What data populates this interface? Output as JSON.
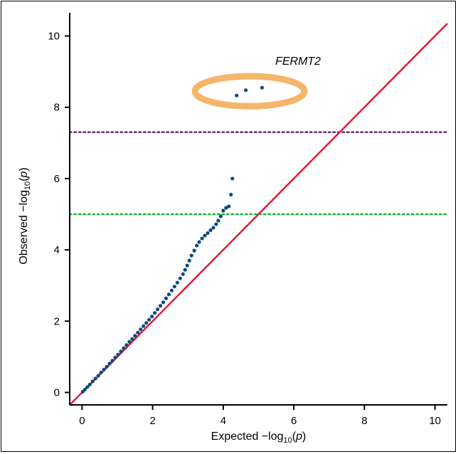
{
  "chart_data": {
    "type": "scatter",
    "title": "",
    "xlabel": "Expected −log10(p)",
    "ylabel": "Observed −log10(p)",
    "xlabel_parts": {
      "pre": "Expected −log",
      "sub": "10",
      "post": "(",
      "italic": "p",
      "close": ")"
    },
    "ylabel_parts": {
      "pre": "Observed −log",
      "sub": "10",
      "post": "(",
      "italic": "p",
      "close": ")"
    },
    "xlim": [
      -0.35,
      10.35
    ],
    "ylim": [
      -0.35,
      10.65
    ],
    "xticks": [
      0,
      2,
      4,
      6,
      8,
      10
    ],
    "yticks": [
      0,
      2,
      4,
      6,
      8,
      10
    ],
    "xtick_labels": [
      "0",
      "2",
      "4",
      "6",
      "8",
      "10"
    ],
    "ytick_labels": [
      "0",
      "2",
      "4",
      "6",
      "8",
      "10"
    ],
    "grid": false,
    "diagonal": {
      "from": [
        -0.35,
        -0.35
      ],
      "to": [
        10.35,
        10.35
      ],
      "color": "#e0183c"
    },
    "thresholds": [
      {
        "y": 7.3,
        "color": "#6b2c6e",
        "style": "dotted"
      },
      {
        "y": 5.0,
        "color": "#1fb53a",
        "style": "dotted"
      }
    ],
    "points": [
      [
        0.02,
        0.02
      ],
      [
        0.08,
        0.08
      ],
      [
        0.15,
        0.15
      ],
      [
        0.22,
        0.22
      ],
      [
        0.3,
        0.31
      ],
      [
        0.38,
        0.39
      ],
      [
        0.46,
        0.47
      ],
      [
        0.54,
        0.56
      ],
      [
        0.62,
        0.64
      ],
      [
        0.7,
        0.72
      ],
      [
        0.78,
        0.81
      ],
      [
        0.86,
        0.89
      ],
      [
        0.94,
        0.98
      ],
      [
        1.02,
        1.06
      ],
      [
        1.1,
        1.15
      ],
      [
        1.18,
        1.24
      ],
      [
        1.26,
        1.33
      ],
      [
        1.34,
        1.42
      ],
      [
        1.42,
        1.5
      ],
      [
        1.5,
        1.59
      ],
      [
        1.58,
        1.68
      ],
      [
        1.66,
        1.77
      ],
      [
        1.74,
        1.86
      ],
      [
        1.82,
        1.95
      ],
      [
        1.9,
        2.04
      ],
      [
        1.98,
        2.13
      ],
      [
        2.06,
        2.23
      ],
      [
        2.14,
        2.33
      ],
      [
        2.22,
        2.43
      ],
      [
        2.3,
        2.53
      ],
      [
        2.38,
        2.64
      ],
      [
        2.46,
        2.75
      ],
      [
        2.54,
        2.86
      ],
      [
        2.62,
        2.97
      ],
      [
        2.7,
        3.08
      ],
      [
        2.78,
        3.2
      ],
      [
        2.86,
        3.32
      ],
      [
        2.92,
        3.44
      ],
      [
        2.98,
        3.56
      ],
      [
        3.04,
        3.7
      ],
      [
        3.1,
        3.84
      ],
      [
        3.18,
        3.98
      ],
      [
        3.25,
        4.12
      ],
      [
        3.32,
        4.22
      ],
      [
        3.4,
        4.32
      ],
      [
        3.48,
        4.4
      ],
      [
        3.56,
        4.47
      ],
      [
        3.64,
        4.55
      ],
      [
        3.72,
        4.62
      ],
      [
        3.8,
        4.72
      ],
      [
        3.86,
        4.82
      ],
      [
        3.93,
        4.94
      ],
      [
        4.0,
        5.1
      ],
      [
        4.08,
        5.18
      ],
      [
        4.16,
        5.22
      ],
      [
        4.22,
        5.55
      ],
      [
        4.26,
        6.0
      ],
      [
        4.38,
        8.33
      ],
      [
        4.64,
        8.48
      ],
      [
        5.1,
        8.55
      ]
    ],
    "point_color": "#0e4a7a",
    "highlight": {
      "label": "FERMT2",
      "cx": 4.75,
      "cy": 8.45,
      "rx": 1.55,
      "ry": 0.42,
      "color": "#f5b56a"
    }
  }
}
